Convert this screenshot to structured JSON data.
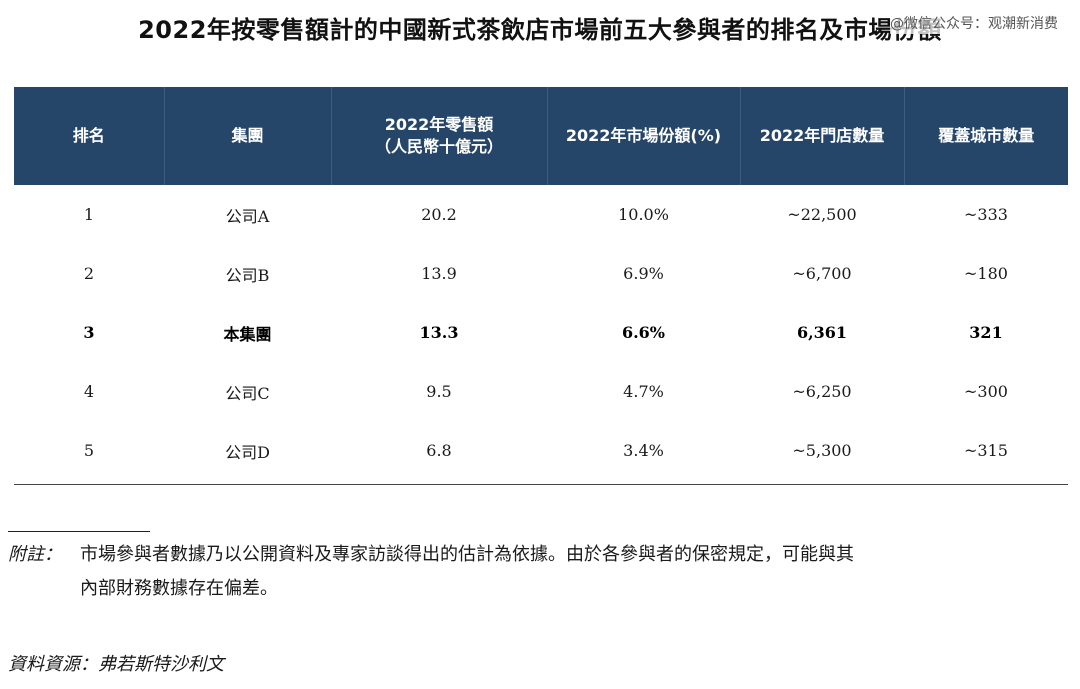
{
  "title": "2022年按零售額計的中國新式茶飲店市場前五大參與者的排名及市場份額",
  "watermark": "@微信公众号：观潮新消费",
  "table": {
    "headers": {
      "rank": "排名",
      "group": "集團",
      "retail_line1": "2022年零售額",
      "retail_line2": "（人民幣十億元）",
      "share": "2022年市場份額(%)",
      "stores": "2022年門店數量",
      "cities": "覆蓋城市數量"
    },
    "rows": [
      {
        "rank": "1",
        "group": "公司A",
        "retail": "20.2",
        "share": "10.0%",
        "stores": "~22,500",
        "cities": "~333"
      },
      {
        "rank": "2",
        "group": "公司B",
        "retail": "13.9",
        "share": "6.9%",
        "stores": "~6,700",
        "cities": "~180"
      },
      {
        "rank": "3",
        "group": "本集團",
        "retail": "13.3",
        "share": "6.6%",
        "stores": "6,361",
        "cities": "321"
      },
      {
        "rank": "4",
        "group": "公司C",
        "retail": "9.5",
        "share": "4.7%",
        "stores": "~6,250",
        "cities": "~300"
      },
      {
        "rank": "5",
        "group": "公司D",
        "retail": "6.8",
        "share": "3.4%",
        "stores": "~5,300",
        "cities": "~315"
      }
    ]
  },
  "footnote": {
    "label": "附註：",
    "line1": "市場參與者數據乃以公開資料及專家訪談得出的估計為依據。由於各參與者的保密規定，可能與其",
    "line2": "內部財務數據存在偏差。"
  },
  "source": "資料資源：弗若斯特沙利文"
}
